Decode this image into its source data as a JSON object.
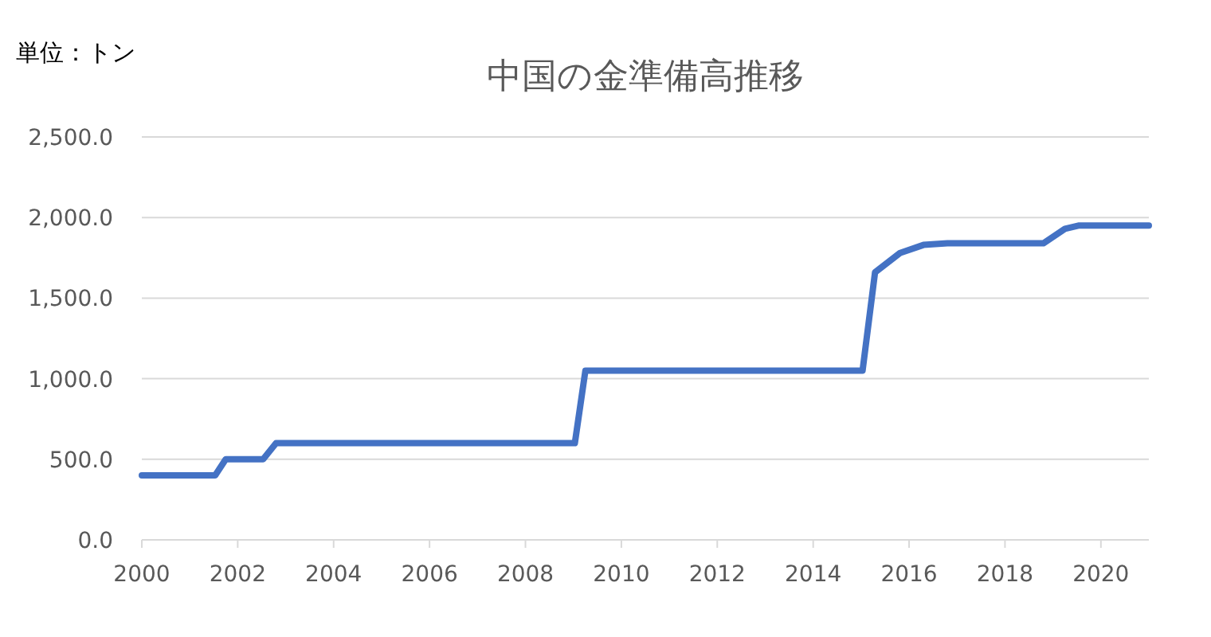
{
  "chart_data": {
    "type": "line",
    "title": "中国の金準備高推移",
    "annotations": [
      "単位：トン"
    ],
    "x": [
      2000,
      2001.53,
      2001.75,
      2002.53,
      2002.8,
      2009.03,
      2009.25,
      2015.03,
      2015.29,
      2015.81,
      2016.3,
      2016.8,
      2018.8,
      2019.25,
      2019.53,
      2021
    ],
    "series": [
      {
        "color": "#4472c4",
        "values": [
          400,
          400,
          500,
          500,
          600,
          600,
          1050,
          1050,
          1660,
          1780,
          1830,
          1840,
          1840,
          1930,
          1950,
          1950
        ]
      }
    ],
    "xlim": [
      2000,
      2021
    ],
    "xticks": [
      2000,
      2002,
      2004,
      2006,
      2008,
      2010,
      2012,
      2014,
      2016,
      2018,
      2020
    ],
    "ylim": [
      0,
      2500
    ],
    "yticks": [
      {
        "value": 0,
        "label": "0.0"
      },
      {
        "value": 500,
        "label": "500.0"
      },
      {
        "value": 1000,
        "label": "1,000.0"
      },
      {
        "value": 1500,
        "label": "1,500.0"
      },
      {
        "value": 2000,
        "label": "2,000.0"
      },
      {
        "value": 2500,
        "label": "2,500.0"
      }
    ],
    "grid": "y",
    "marker": "none",
    "line_style": "solid"
  }
}
